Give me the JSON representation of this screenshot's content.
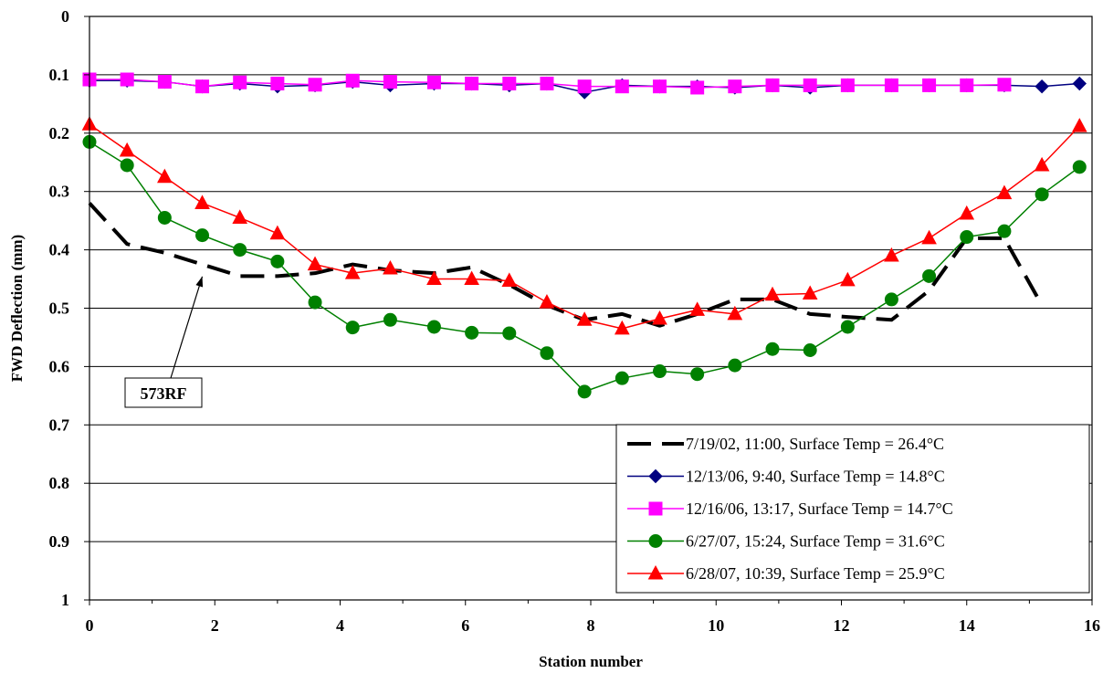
{
  "chart_data": {
    "type": "line",
    "title": "",
    "xlabel": "Station number",
    "ylabel": "FWD Deflection (mm)",
    "xlim": [
      0,
      16
    ],
    "ylim": [
      0,
      1
    ],
    "y_inverted": true,
    "x_ticks": [
      "0",
      "2",
      "4",
      "6",
      "8",
      "10",
      "12",
      "14",
      "16"
    ],
    "y_ticks": [
      "0",
      "0.1",
      "0.2",
      "0.3",
      "0.4",
      "0.5",
      "0.6",
      "0.7",
      "0.8",
      "0.9",
      "1"
    ],
    "grid": "horizontal",
    "legend_position": "bottom-right",
    "annotation": {
      "text": "573RF",
      "points_to": {
        "x": 1.8,
        "y": 0.43
      }
    },
    "series": [
      {
        "name": "7/19/02, 11:00, Surface Temp = 26.4°C",
        "color": "#000000",
        "style": "dashed",
        "marker": "none",
        "x": [
          0,
          0.6,
          1.2,
          1.8,
          2.4,
          3.0,
          3.6,
          4.2,
          4.8,
          5.5,
          6.1,
          6.7,
          7.3,
          7.9,
          8.5,
          9.1,
          9.7,
          10.3,
          10.9,
          11.5,
          12.1,
          12.8,
          13.4,
          14.0,
          14.6,
          15.2
        ],
        "y": [
          0.32,
          0.39,
          0.405,
          0.425,
          0.445,
          0.445,
          0.44,
          0.425,
          0.435,
          0.44,
          0.43,
          0.46,
          0.495,
          0.52,
          0.51,
          0.53,
          0.51,
          0.485,
          0.485,
          0.51,
          0.515,
          0.52,
          0.47,
          0.38,
          0.38,
          0.495
        ]
      },
      {
        "name": "12/13/06, 9:40, Surface Temp = 14.8°C",
        "color": "#000080",
        "style": "solid",
        "marker": "diamond",
        "x": [
          0,
          0.6,
          1.2,
          1.8,
          2.4,
          3.0,
          3.6,
          4.2,
          4.8,
          5.5,
          6.1,
          6.7,
          7.3,
          7.9,
          8.5,
          9.1,
          9.7,
          10.3,
          10.9,
          11.5,
          12.1,
          12.8,
          13.4,
          14.0,
          14.6,
          15.2,
          15.8
        ],
        "y": [
          0.11,
          0.11,
          0.112,
          0.12,
          0.115,
          0.12,
          0.118,
          0.112,
          0.118,
          0.115,
          0.115,
          0.118,
          0.115,
          0.13,
          0.118,
          0.12,
          0.12,
          0.122,
          0.118,
          0.122,
          0.118,
          0.118,
          0.118,
          0.118,
          0.118,
          0.12,
          0.115
        ]
      },
      {
        "name": "12/16/06, 13:17, Surface Temp = 14.7°C",
        "color": "#FF00FF",
        "style": "solid",
        "marker": "square",
        "x": [
          0,
          0.6,
          1.2,
          1.8,
          2.4,
          3.0,
          3.6,
          4.2,
          4.8,
          5.5,
          6.1,
          6.7,
          7.3,
          7.9,
          8.5,
          9.1,
          9.7,
          10.3,
          10.9,
          11.5,
          12.1,
          12.8,
          13.4,
          14.0,
          14.6
        ],
        "y": [
          0.108,
          0.108,
          0.112,
          0.12,
          0.113,
          0.115,
          0.117,
          0.11,
          0.112,
          0.113,
          0.115,
          0.115,
          0.115,
          0.12,
          0.12,
          0.12,
          0.122,
          0.12,
          0.118,
          0.118,
          0.118,
          0.118,
          0.118,
          0.118,
          0.117
        ]
      },
      {
        "name": "6/27/07, 15:24, Surface Temp = 31.6°C",
        "color": "#008000",
        "style": "solid",
        "marker": "circle",
        "x": [
          0,
          0.6,
          1.2,
          1.8,
          2.4,
          3.0,
          3.6,
          4.2,
          4.8,
          5.5,
          6.1,
          6.7,
          7.3,
          7.9,
          8.5,
          9.1,
          9.7,
          10.3,
          10.9,
          11.5,
          12.1,
          12.8,
          13.4,
          14.0,
          14.6,
          15.2,
          15.8
        ],
        "y": [
          0.215,
          0.255,
          0.345,
          0.375,
          0.4,
          0.42,
          0.49,
          0.533,
          0.52,
          0.532,
          0.542,
          0.543,
          0.577,
          0.643,
          0.62,
          0.608,
          0.613,
          0.598,
          0.57,
          0.572,
          0.532,
          0.485,
          0.445,
          0.378,
          0.368,
          0.305,
          0.258
        ]
      },
      {
        "name": "6/28/07, 10:39, Surface Temp = 25.9°C",
        "color": "#FF0000",
        "style": "solid",
        "marker": "triangle",
        "x": [
          0,
          0.6,
          1.2,
          1.8,
          2.4,
          3.0,
          3.6,
          4.2,
          4.8,
          5.5,
          6.1,
          6.7,
          7.3,
          7.9,
          8.5,
          9.1,
          9.7,
          10.3,
          10.9,
          11.5,
          12.1,
          12.8,
          13.4,
          14.0,
          14.6,
          15.2,
          15.8
        ],
        "y": [
          0.185,
          0.23,
          0.275,
          0.32,
          0.345,
          0.372,
          0.425,
          0.44,
          0.432,
          0.45,
          0.45,
          0.453,
          0.49,
          0.52,
          0.535,
          0.518,
          0.503,
          0.51,
          0.477,
          0.475,
          0.452,
          0.41,
          0.38,
          0.338,
          0.303,
          0.255,
          0.188
        ]
      }
    ]
  }
}
